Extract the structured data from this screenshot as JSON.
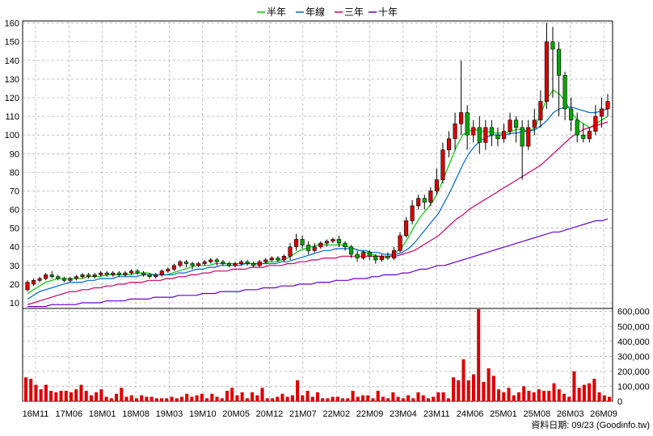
{
  "legend": [
    {
      "label": "半年",
      "color": "#00cc00"
    },
    {
      "label": "年線",
      "color": "#0066cc"
    },
    {
      "label": "三年",
      "color": "#cc0066"
    },
    {
      "label": "十年",
      "color": "#6600cc"
    }
  ],
  "credit": "資料日期: 09/23  (Goodinfo.tw)",
  "colors": {
    "up": "#dd0000",
    "down": "#00aa00",
    "volume": "#dd0000",
    "grid": "#999999"
  },
  "chart_data": [
    {
      "type": "candlestick",
      "title": "",
      "x_ticks": [
        "16M11",
        "17M06",
        "18M01",
        "18M08",
        "19M03",
        "19M10",
        "20M05",
        "20M12",
        "21M07",
        "22M02",
        "22M09",
        "23M04",
        "23M11",
        "24M06",
        "25M01",
        "25M08",
        "26M03",
        "26M09"
      ],
      "y_ticks": [
        10,
        20,
        30,
        40,
        50,
        60,
        70,
        80,
        90,
        100,
        110,
        120,
        130,
        140,
        150,
        160
      ],
      "ylim": [
        4,
        162
      ],
      "grid": true,
      "legend_position": "top-center",
      "candles": [
        [
          17,
          21,
          16,
          22
        ],
        [
          20,
          22,
          19,
          23
        ],
        [
          22,
          23,
          21,
          24
        ],
        [
          23,
          25,
          22,
          26
        ],
        [
          25,
          24,
          23,
          27
        ],
        [
          24,
          23,
          22,
          25
        ],
        [
          23,
          22,
          21,
          24
        ],
        [
          22,
          23,
          21,
          24
        ],
        [
          23,
          24,
          22,
          25
        ],
        [
          24,
          25,
          23,
          26
        ],
        [
          25,
          24,
          23,
          26
        ],
        [
          24,
          25,
          23,
          26
        ],
        [
          25,
          26,
          24,
          27
        ],
        [
          26,
          25,
          24,
          27
        ],
        [
          25,
          26,
          24,
          27
        ],
        [
          26,
          25,
          24,
          27
        ],
        [
          25,
          26,
          24,
          27
        ],
        [
          26,
          27,
          25,
          28
        ],
        [
          27,
          26,
          25,
          28
        ],
        [
          26,
          25,
          24,
          27
        ],
        [
          25,
          24,
          23,
          26
        ],
        [
          24,
          25,
          23,
          26
        ],
        [
          25,
          27,
          24,
          28
        ],
        [
          27,
          28,
          26,
          29
        ],
        [
          28,
          30,
          27,
          31
        ],
        [
          30,
          32,
          29,
          33
        ],
        [
          32,
          31,
          29,
          33
        ],
        [
          31,
          30,
          28,
          32
        ],
        [
          30,
          31,
          29,
          32
        ],
        [
          31,
          32,
          30,
          33
        ],
        [
          32,
          33,
          31,
          34
        ],
        [
          33,
          32,
          30,
          34
        ],
        [
          32,
          31,
          30,
          33
        ],
        [
          31,
          30,
          29,
          32
        ],
        [
          30,
          31,
          29,
          32
        ],
        [
          31,
          32,
          30,
          33
        ],
        [
          32,
          31,
          30,
          33
        ],
        [
          31,
          30,
          29,
          32
        ],
        [
          30,
          32,
          29,
          33
        ],
        [
          32,
          33,
          31,
          34
        ],
        [
          33,
          34,
          32,
          35
        ],
        [
          34,
          33,
          32,
          35
        ],
        [
          33,
          35,
          32,
          36
        ],
        [
          35,
          40,
          33,
          42
        ],
        [
          40,
          44,
          38,
          47
        ],
        [
          44,
          41,
          39,
          46
        ],
        [
          41,
          38,
          36,
          43
        ],
        [
          38,
          40,
          37,
          42
        ],
        [
          40,
          42,
          39,
          43
        ],
        [
          42,
          43,
          40,
          44
        ],
        [
          43,
          44,
          42,
          45
        ],
        [
          44,
          42,
          40,
          46
        ],
        [
          42,
          40,
          38,
          43
        ],
        [
          40,
          36,
          34,
          41
        ],
        [
          36,
          34,
          32,
          38
        ],
        [
          34,
          37,
          33,
          38
        ],
        [
          37,
          35,
          33,
          38
        ],
        [
          35,
          33,
          31,
          36
        ],
        [
          33,
          35,
          32,
          36
        ],
        [
          35,
          34,
          33,
          37
        ],
        [
          34,
          38,
          33,
          40
        ],
        [
          38,
          46,
          37,
          48
        ],
        [
          46,
          54,
          45,
          56
        ],
        [
          54,
          62,
          52,
          65
        ],
        [
          62,
          66,
          60,
          68
        ],
        [
          66,
          64,
          60,
          68
        ],
        [
          64,
          70,
          62,
          72
        ],
        [
          70,
          76,
          68,
          82
        ],
        [
          76,
          92,
          74,
          96
        ],
        [
          92,
          98,
          88,
          102
        ],
        [
          98,
          106,
          92,
          112
        ],
        [
          106,
          112,
          100,
          140
        ],
        [
          112,
          100,
          92,
          116
        ],
        [
          100,
          104,
          96,
          108
        ],
        [
          104,
          96,
          90,
          110
        ],
        [
          96,
          104,
          92,
          108
        ],
        [
          104,
          100,
          94,
          108
        ],
        [
          100,
          98,
          94,
          104
        ],
        [
          98,
          102,
          96,
          106
        ],
        [
          102,
          108,
          100,
          112
        ],
        [
          108,
          104,
          96,
          110
        ],
        [
          104,
          94,
          76,
          108
        ],
        [
          94,
          104,
          92,
          108
        ],
        [
          104,
          108,
          100,
          114
        ],
        [
          108,
          118,
          104,
          124
        ],
        [
          118,
          150,
          114,
          160
        ],
        [
          150,
          146,
          120,
          158
        ],
        [
          146,
          132,
          110,
          150
        ],
        [
          132,
          114,
          108,
          134
        ],
        [
          114,
          108,
          102,
          120
        ],
        [
          108,
          100,
          96,
          112
        ],
        [
          100,
          98,
          96,
          106
        ],
        [
          98,
          102,
          96,
          104
        ],
        [
          102,
          110,
          100,
          116
        ],
        [
          110,
          114,
          104,
          120
        ],
        [
          114,
          118,
          110,
          122
        ]
      ],
      "ma": [
        {
          "name": "半年",
          "values": [
            15,
            17,
            19,
            21,
            22,
            23,
            23,
            23,
            23,
            23,
            24,
            24,
            24,
            25,
            25,
            25,
            25,
            25,
            26,
            26,
            26,
            25,
            25,
            25,
            26,
            27,
            28,
            29,
            30,
            30,
            30,
            31,
            31,
            31,
            31,
            31,
            31,
            31,
            31,
            31,
            32,
            32,
            33,
            34,
            36,
            38,
            39,
            40,
            41,
            41,
            41,
            41,
            41,
            40,
            39,
            38,
            37,
            36,
            35,
            34,
            35,
            37,
            40,
            45,
            51,
            56,
            60,
            64,
            70,
            78,
            86,
            94,
            100,
            102,
            103,
            102,
            102,
            101,
            101,
            101,
            102,
            103,
            103,
            102,
            104,
            112,
            120,
            124,
            122,
            118,
            112,
            108,
            106,
            104,
            106,
            108,
            110
          ]
        },
        {
          "name": "年線",
          "values": [
            12,
            14,
            16,
            17,
            18,
            19,
            20,
            21,
            21,
            21,
            22,
            22,
            23,
            23,
            23,
            24,
            24,
            24,
            24,
            25,
            25,
            25,
            25,
            25,
            25,
            26,
            26,
            27,
            28,
            28,
            29,
            29,
            30,
            30,
            30,
            30,
            31,
            31,
            31,
            31,
            31,
            31,
            32,
            32,
            33,
            34,
            35,
            36,
            37,
            38,
            38,
            39,
            39,
            39,
            39,
            38,
            38,
            37,
            37,
            36,
            36,
            36,
            37,
            39,
            42,
            46,
            50,
            54,
            58,
            64,
            70,
            77,
            84,
            90,
            94,
            97,
            99,
            100,
            100,
            100,
            101,
            101,
            102,
            102,
            103,
            105,
            108,
            112,
            114,
            115,
            115,
            114,
            113,
            112,
            112,
            113,
            114
          ]
        },
        {
          "name": "三年",
          "values": [
            9,
            10,
            11,
            12,
            13,
            14,
            15,
            16,
            16,
            17,
            17,
            18,
            18,
            19,
            19,
            20,
            20,
            21,
            21,
            21,
            22,
            22,
            22,
            23,
            23,
            24,
            24,
            25,
            25,
            26,
            26,
            27,
            27,
            27,
            28,
            28,
            28,
            29,
            29,
            29,
            30,
            30,
            30,
            31,
            31,
            32,
            32,
            33,
            33,
            34,
            34,
            34,
            35,
            35,
            35,
            35,
            35,
            35,
            35,
            35,
            35,
            35,
            36,
            37,
            38,
            40,
            42,
            44,
            46,
            49,
            52,
            55,
            57,
            60,
            62,
            64,
            66,
            68,
            70,
            72,
            74,
            76,
            78,
            80,
            82,
            84,
            87,
            90,
            93,
            96,
            99,
            101,
            103,
            104,
            105,
            106,
            107
          ]
        },
        {
          "name": "十年",
          "values": [
            8,
            8,
            8,
            8,
            9,
            9,
            9,
            9,
            9,
            10,
            10,
            10,
            10,
            11,
            11,
            11,
            11,
            12,
            12,
            12,
            12,
            13,
            13,
            13,
            13,
            14,
            14,
            14,
            14,
            15,
            15,
            15,
            16,
            16,
            16,
            16,
            17,
            17,
            17,
            18,
            18,
            18,
            19,
            19,
            19,
            20,
            20,
            20,
            21,
            21,
            21,
            22,
            22,
            22,
            23,
            23,
            23,
            24,
            24,
            25,
            25,
            25,
            26,
            26,
            27,
            28,
            28,
            29,
            30,
            30,
            31,
            32,
            33,
            34,
            35,
            36,
            37,
            38,
            39,
            40,
            41,
            42,
            43,
            44,
            45,
            46,
            47,
            48,
            48,
            49,
            50,
            51,
            52,
            53,
            54,
            54,
            55
          ]
        }
      ]
    },
    {
      "type": "bar",
      "title": "",
      "y_ticks": [
        "0",
        "100,000",
        "200,000",
        "300,000",
        "400,000",
        "500,000",
        "600,000"
      ],
      "y_tick_values": [
        0,
        100000,
        200000,
        300000,
        400000,
        500000,
        600000
      ],
      "ylim": [
        0,
        620000
      ],
      "values": [
        160000,
        150000,
        110000,
        80000,
        110000,
        70000,
        60000,
        70000,
        70000,
        60000,
        80000,
        110000,
        70000,
        40000,
        60000,
        80000,
        30000,
        20000,
        50000,
        90000,
        30000,
        40000,
        20000,
        40000,
        30000,
        30000,
        20000,
        20000,
        20000,
        30000,
        20000,
        30000,
        50000,
        30000,
        40000,
        50000,
        20000,
        50000,
        30000,
        20000,
        70000,
        90000,
        40000,
        60000,
        20000,
        60000,
        40000,
        90000,
        20000,
        20000,
        30000,
        50000,
        30000,
        40000,
        140000,
        40000,
        70000,
        30000,
        60000,
        20000,
        20000,
        30000,
        30000,
        20000,
        20000,
        70000,
        30000,
        40000,
        40000,
        20000,
        70000,
        30000,
        20000,
        60000,
        30000,
        20000,
        40000,
        20000,
        60000,
        40000,
        20000,
        30000,
        60000,
        60000,
        20000,
        160000,
        140000,
        280000,
        140000,
        180000,
        650000,
        130000,
        220000,
        170000,
        80000,
        60000,
        90000,
        40000,
        60000,
        100000,
        70000,
        60000,
        80000,
        70000,
        70000,
        120000,
        80000,
        50000,
        30000,
        200000,
        90000,
        110000,
        120000,
        150000,
        60000,
        40000,
        30000
      ]
    }
  ]
}
